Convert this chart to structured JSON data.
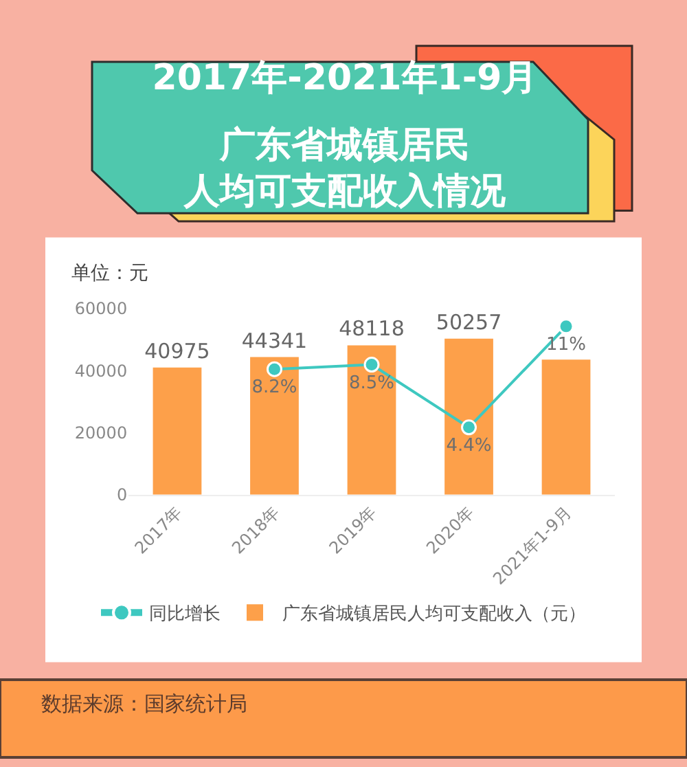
{
  "chart_data": {
    "type": "bar",
    "title": "2017年-2021年1-9月",
    "subtitle": "广东省城镇居民人均可支配收入情况",
    "ylabel": "单位：元",
    "categories": [
      "2017年",
      "2018年",
      "2019年",
      "2020年",
      "2021年1-9月"
    ],
    "series": [
      {
        "name": "同比增长",
        "type": "line",
        "axis": "y2",
        "color": "#3ec8c0",
        "values": [
          null,
          8.2,
          8.5,
          4.4,
          11
        ],
        "value_labels": [
          null,
          "8.2%",
          "8.5%",
          "4.4%",
          "11%"
        ]
      },
      {
        "name": "广东省城镇居民人均可支配收入（元）",
        "color": "#fda04a",
        "values": [
          40975,
          44341,
          48118,
          50257,
          43500
        ],
        "value_labels": [
          "40975",
          "44341",
          "48118",
          "50257",
          null
        ]
      }
    ],
    "ylim": [
      0,
      60000
    ],
    "yticks": [
      0,
      20000,
      40000,
      60000
    ],
    "tick_labels": "xy",
    "marker": "circle",
    "grid": false,
    "legend": "bottom",
    "annotations": [
      "数据来源：国家统计局"
    ]
  }
}
